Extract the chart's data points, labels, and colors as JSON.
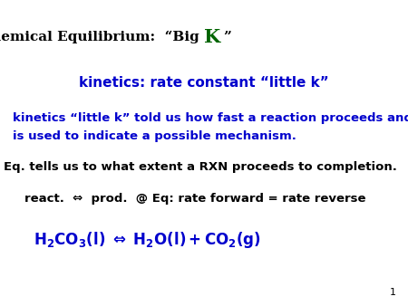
{
  "bg_color": "#ffffff",
  "title_color": "#000000",
  "title_K_color": "#006400",
  "line2": "kinetics: rate constant “little k”",
  "line2_color": "#0000cd",
  "line3a": "kinetics “little k” told us how fast a reaction proceeds and",
  "line3b": "is used to indicate a possible mechanism.",
  "line3_color": "#0000cd",
  "line4": "Eq. tells us to what extent a RXN proceeds to completion.",
  "line4_color": "#000000",
  "line5": "react.  ⇔  prod.  @ Eq: rate forward = rate reverse",
  "line5_color": "#000000",
  "line6_color": "#0000cd",
  "page_num": "1",
  "font_size_title": 11,
  "font_size_body": 9.5,
  "font_size_K": 15,
  "font_size_small": 8
}
